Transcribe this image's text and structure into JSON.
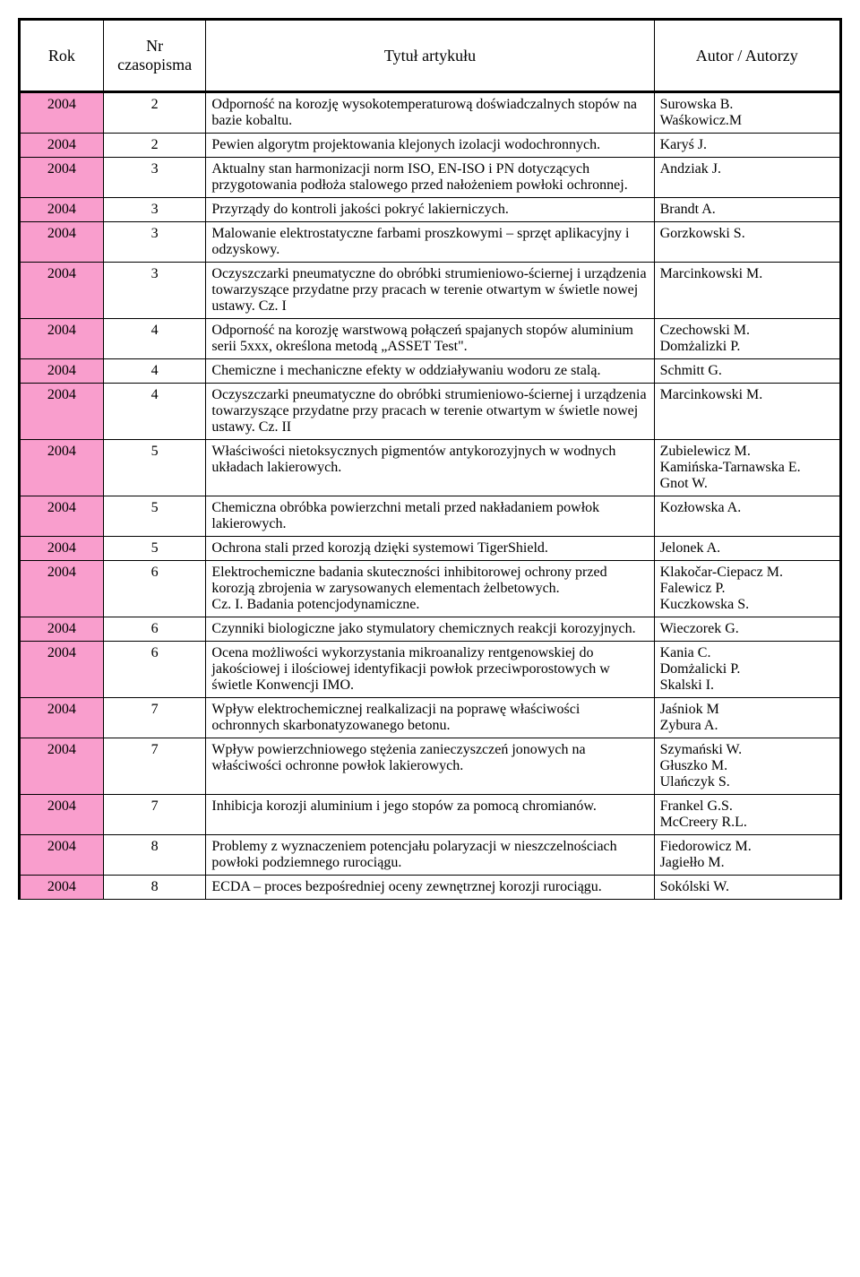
{
  "colors": {
    "year_bg": "#f99ecd",
    "border": "#000000",
    "page_bg": "#ffffff",
    "text": "#000000"
  },
  "header": {
    "year": "Rok",
    "num": "Nr\nczasopisma",
    "title": "Tytuł artykułu",
    "author": "Autor / Autorzy"
  },
  "rows": [
    {
      "year": "2004",
      "num": "2",
      "title": "Odporność na korozję wysokotemperaturową doświadczalnych stopów na bazie kobaltu.",
      "author": "Surowska B.\nWaśkowicz.M"
    },
    {
      "year": "2004",
      "num": "2",
      "title": "Pewien algorytm projektowania klejonych izolacji wodochronnych.",
      "author": "Karyś J."
    },
    {
      "year": "2004",
      "num": "3",
      "title": "Aktualny stan harmonizacji norm ISO, EN-ISO i PN dotyczących przygotowania podłoża stalowego przed nałożeniem powłoki ochronnej.",
      "author": "Andziak J."
    },
    {
      "year": "2004",
      "num": "3",
      "title": "Przyrządy do kontroli jakości pokryć lakierniczych.",
      "author": "Brandt A."
    },
    {
      "year": "2004",
      "num": "3",
      "title": "Malowanie elektrostatyczne farbami proszkowymi – sprzęt aplikacyjny i odzyskowy.",
      "author": "Gorzkowski S."
    },
    {
      "year": "2004",
      "num": "3",
      "title": "Oczyszczarki pneumatyczne do obróbki strumieniowo-ściernej i urządzenia towarzyszące przydatne przy pracach w terenie otwartym w świetle nowej ustawy. Cz. I",
      "author": "Marcinkowski M."
    },
    {
      "year": "2004",
      "num": "4",
      "title": "Odporność na korozję warstwową połączeń spajanych stopów aluminium serii 5xxx, określona metodą „ASSET Test\".",
      "author": "Czechowski M.\nDomżalizki P."
    },
    {
      "year": "2004",
      "num": "4",
      "title": "Chemiczne i mechaniczne efekty w oddziaływaniu wodoru ze stalą.",
      "author": "Schmitt G."
    },
    {
      "year": "2004",
      "num": "4",
      "title": "Oczyszczarki pneumatyczne do obróbki strumieniowo-ściernej i urządzenia towarzyszące przydatne przy pracach w terenie otwartym w świetle nowej ustawy. Cz. II",
      "author": "Marcinkowski M."
    },
    {
      "year": "2004",
      "num": "5",
      "title": "Właściwości nietoksycznych pigmentów antykorozyjnych w wodnych układach lakierowych.",
      "author": "Zubielewicz M.\nKamińska-Tarnawska E.\nGnot W."
    },
    {
      "year": "2004",
      "num": "5",
      "title": "Chemiczna obróbka powierzchni metali przed nakładaniem powłok lakierowych.",
      "author": "Kozłowska A."
    },
    {
      "year": "2004",
      "num": "5",
      "title": "Ochrona stali przed korozją dzięki systemowi TigerShield.",
      "author": "Jelonek A."
    },
    {
      "year": "2004",
      "num": "6",
      "title": "Elektrochemiczne badania skuteczności inhibitorowej ochrony przed korozją zbrojenia w zarysowanych elementach żelbetowych.\nCz. I. Badania potencjodynamiczne.",
      "author": "Klakočar-Ciepacz M.\nFalewicz P.\nKuczkowska S."
    },
    {
      "year": "2004",
      "num": "6",
      "title": "Czynniki biologiczne jako stymulatory chemicznych reakcji korozyjnych.",
      "author": "Wieczorek G."
    },
    {
      "year": "2004",
      "num": "6",
      "title": "Ocena możliwości wykorzystania mikroanalizy rentgenowskiej do jakościowej i ilościowej identyfikacji powłok przeciwporostowych w świetle Konwencji IMO.",
      "author": "Kania C.\nDomżalicki P.\nSkalski I."
    },
    {
      "year": "2004",
      "num": "7",
      "title": "Wpływ elektrochemicznej realkalizacji na poprawę właściwości ochronnych skarbonatyzowanego betonu.",
      "author": "Jaśniok M\nZybura A."
    },
    {
      "year": "2004",
      "num": "7",
      "title": "Wpływ powierzchniowego stężenia zanieczyszczeń jonowych na właściwości ochronne powłok lakierowych.",
      "author": "Szymański W.\nGłuszko M.\nUlańczyk S."
    },
    {
      "year": "2004",
      "num": "7",
      "title": "Inhibicja korozji aluminium i jego stopów za pomocą chromianów.",
      "author": "Frankel G.S.\nMcCreery R.L."
    },
    {
      "year": "2004",
      "num": "8",
      "title": "Problemy z wyznaczeniem potencjału polaryzacji w nieszczelnościach powłoki podziemnego rurociągu.",
      "author": "Fiedorowicz M.\nJagiełło M."
    },
    {
      "year": "2004",
      "num": "8",
      "title": "ECDA – proces bezpośredniej oceny zewnętrznej korozji rurociągu.",
      "author": "Sokólski W."
    }
  ]
}
